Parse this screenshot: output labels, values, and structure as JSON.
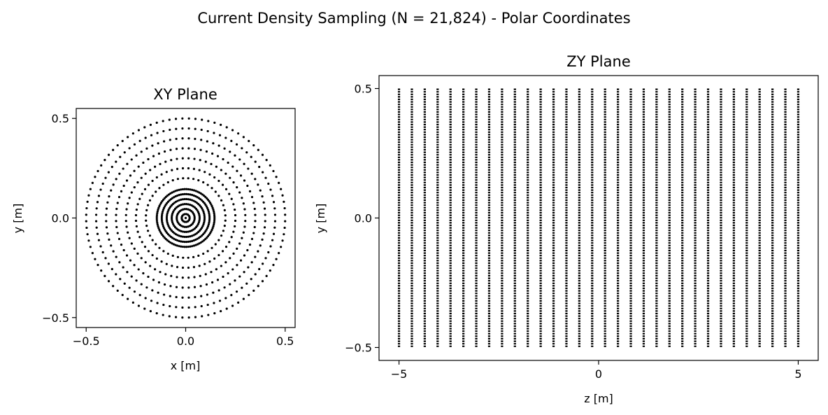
{
  "figure": {
    "title": "Current Density Sampling (N = 21,824) - Polar Coordinates"
  },
  "chart_data": [
    {
      "type": "scatter",
      "title": "XY Plane",
      "xlabel": "x [m]",
      "ylabel": "y [m]",
      "xlim": [
        -0.55,
        0.55
      ],
      "ylim": [
        -0.55,
        0.55
      ],
      "xticks": [
        -0.5,
        0.0,
        0.5
      ],
      "xtick_labels": [
        "−0.5",
        "0.0",
        "0.5"
      ],
      "yticks": [
        -0.5,
        0.0,
        0.5
      ],
      "ytick_labels": [
        "−0.5",
        "0.0",
        "0.5"
      ],
      "aspect": "equal",
      "grid": false,
      "marker_color": "#000000",
      "structure": "concentric rings of points centred at origin",
      "rings": [
        {
          "radius": 0.02,
          "points": 16
        },
        {
          "radius": 0.045,
          "points": 32
        },
        {
          "radius": 0.07,
          "points": 48
        },
        {
          "radius": 0.095,
          "points": 64
        },
        {
          "radius": 0.12,
          "points": 80
        },
        {
          "radius": 0.145,
          "points": 96
        },
        {
          "radius": 0.2,
          "points": 48
        },
        {
          "radius": 0.25,
          "points": 56
        },
        {
          "radius": 0.3,
          "points": 64
        },
        {
          "radius": 0.35,
          "points": 72
        },
        {
          "radius": 0.4,
          "points": 80
        },
        {
          "radius": 0.45,
          "points": 88
        },
        {
          "radius": 0.5,
          "points": 96
        }
      ]
    },
    {
      "type": "scatter",
      "title": "ZY Plane",
      "xlabel": "z [m]",
      "ylabel": "y [m]",
      "xlim": [
        -5.5,
        5.5
      ],
      "ylim": [
        -0.55,
        0.55
      ],
      "xticks": [
        -5,
        0,
        5
      ],
      "xtick_labels": [
        "−5",
        "0",
        "5"
      ],
      "yticks": [
        -0.5,
        0.0,
        0.5
      ],
      "ytick_labels": [
        "−0.5",
        "0.0",
        "0.5"
      ],
      "grid": false,
      "marker_color": "#000000",
      "structure": "vertical columns of points at evenly spaced z positions spanning y from -0.5 to 0.5",
      "z_start": -5,
      "z_end": 5,
      "z_columns": 32,
      "y_min": -0.5,
      "y_max": 0.5
    }
  ]
}
